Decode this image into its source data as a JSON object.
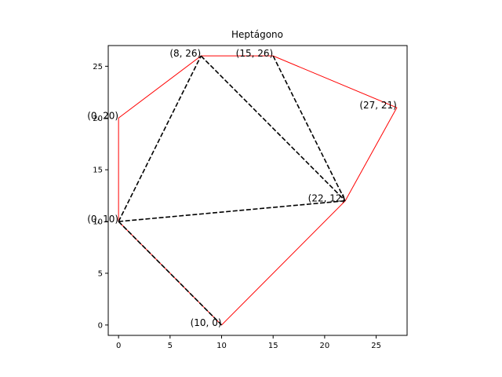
{
  "chart_data": {
    "type": "line",
    "title": "Heptágono",
    "xlim": [
      -1,
      28
    ],
    "ylim": [
      -1,
      27
    ],
    "xticks": [
      0,
      5,
      10,
      15,
      20,
      25
    ],
    "yticks": [
      0,
      5,
      10,
      15,
      20,
      25
    ],
    "grid": false,
    "polygon": {
      "color": "#ff0000",
      "points": [
        {
          "x": 0,
          "y": 20
        },
        {
          "x": 8,
          "y": 26
        },
        {
          "x": 15,
          "y": 26
        },
        {
          "x": 27,
          "y": 21
        },
        {
          "x": 22,
          "y": 12
        },
        {
          "x": 10,
          "y": 0
        },
        {
          "x": 0,
          "y": 10
        }
      ]
    },
    "diagonals": {
      "color": "#000000",
      "style": "dashed",
      "segments": [
        {
          "from": {
            "x": 0,
            "y": 10
          },
          "to": {
            "x": 8,
            "y": 26
          }
        },
        {
          "from": {
            "x": 8,
            "y": 26
          },
          "to": {
            "x": 22,
            "y": 12
          }
        },
        {
          "from": {
            "x": 15,
            "y": 26
          },
          "to": {
            "x": 22,
            "y": 12
          }
        },
        {
          "from": {
            "x": 0,
            "y": 10
          },
          "to": {
            "x": 22,
            "y": 12
          }
        },
        {
          "from": {
            "x": 0,
            "y": 10
          },
          "to": {
            "x": 10,
            "y": 0
          }
        }
      ]
    },
    "point_labels": [
      {
        "x": 0,
        "y": 20,
        "text": "(0, 20)"
      },
      {
        "x": 8,
        "y": 26,
        "text": "(8, 26)"
      },
      {
        "x": 15,
        "y": 26,
        "text": "(15, 26)"
      },
      {
        "x": 27,
        "y": 21,
        "text": "(27, 21)"
      },
      {
        "x": 22,
        "y": 12,
        "text": "(22, 12)"
      },
      {
        "x": 10,
        "y": 0,
        "text": "(10, 0)"
      },
      {
        "x": 0,
        "y": 10,
        "text": "(0, 10)"
      }
    ]
  }
}
